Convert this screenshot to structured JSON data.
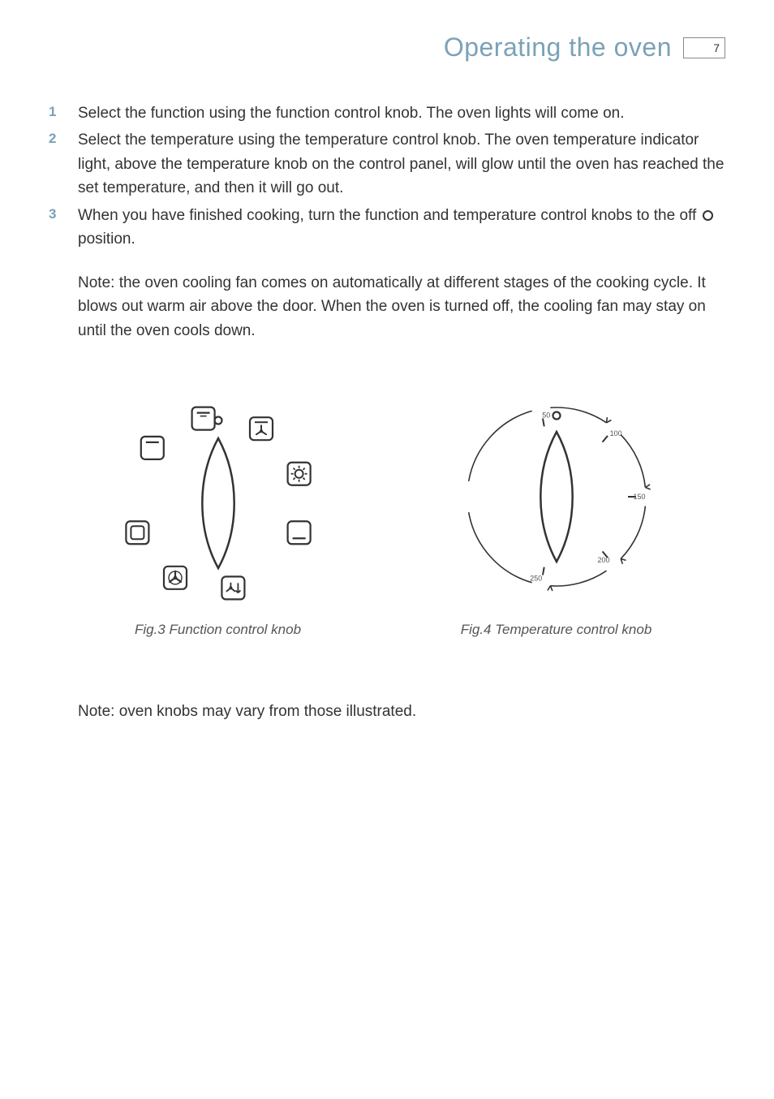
{
  "page": {
    "title": "Operating the oven",
    "title_color": "#7aa2b8",
    "number": "7"
  },
  "steps": [
    {
      "num": "1",
      "num_color": "#7aa2b8",
      "text": "Select the function using the function control knob.  The oven lights will come on."
    },
    {
      "num": "2",
      "num_color": "#7aa2b8",
      "text": "Select the temperature using the temperature control knob.  The oven temperature indicator light, above the temperature knob on the control panel, will glow until the oven has reached the set temperature, and then it will go out."
    },
    {
      "num": "3",
      "num_color": "#7aa2b8",
      "text_before": "When you have finished cooking, turn the function and temperature control knobs to the off ",
      "has_off_icon": true,
      "text_after": " position."
    }
  ],
  "note1": "Note:  the oven cooling fan comes on automatically at different stages of the cooking cycle. It blows out warm air above the door. When the oven is turned off, the cooling fan may stay on until the oven cools down.",
  "note2": "Note: oven knobs may vary from those illustrated.",
  "figures": {
    "function_knob": {
      "caption": "Fig.3 Function control knob",
      "off_dot_label": "O",
      "icons": [
        {
          "angle": -90,
          "kind": "off"
        },
        {
          "angle": -50,
          "kind": "box-top"
        },
        {
          "angle": -10,
          "kind": "box-top-small"
        },
        {
          "angle": 30,
          "kind": "box-fan-top"
        },
        {
          "angle": 70,
          "kind": "box-light"
        },
        {
          "angle": 110,
          "kind": "box-bottom"
        },
        {
          "angle": 170,
          "kind": "box-fan-arrow"
        },
        {
          "angle": 210,
          "kind": "box-fan"
        },
        {
          "angle": 250,
          "kind": "box-empty"
        }
      ],
      "knob_stroke": "#333333",
      "icon_stroke": "#333333"
    },
    "temp_knob": {
      "caption": "Fig.4 Temperature control knob",
      "off_dot_label": "O",
      "labels": [
        {
          "value": "50",
          "angle": -10
        },
        {
          "value": "100",
          "angle": 40
        },
        {
          "value": "150",
          "angle": 90
        },
        {
          "value": "200",
          "angle": 140
        },
        {
          "value": "250",
          "angle": 190
        }
      ],
      "knob_stroke": "#333333",
      "label_color": "#555555",
      "label_fontsize": 9
    }
  }
}
